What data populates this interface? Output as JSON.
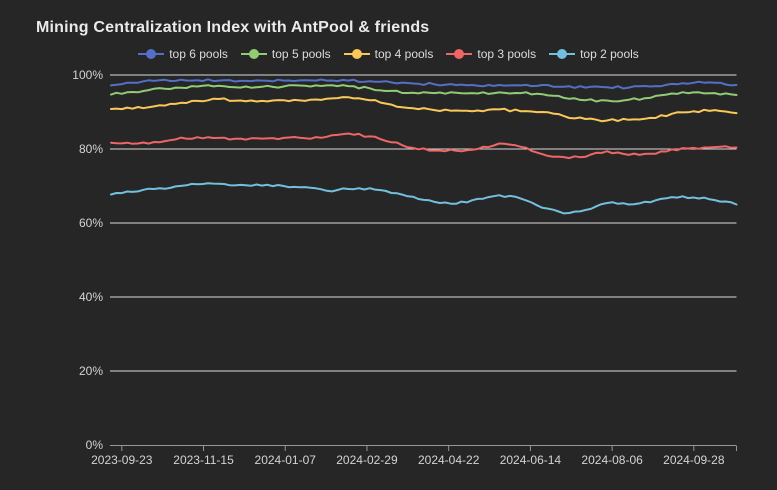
{
  "title": "Mining Centralization Index with AntPool & friends",
  "colors": {
    "background": "#262626",
    "title_text": "#eaeaea",
    "legend_text": "#dcdcdc",
    "axis_text": "#d4d4d4",
    "gridline": "#dadada",
    "axis_line": "#979797",
    "series_blue": "#5470c6",
    "series_green": "#91cc75",
    "series_yellow": "#fac858",
    "series_red": "#ee6666",
    "series_cyan": "#73c0de"
  },
  "chart_data": {
    "type": "line",
    "title": "Mining Centralization Index with AntPool & friends",
    "xlabel": "",
    "ylabel": "",
    "ylim": [
      0,
      100
    ],
    "grid": true,
    "legend_position": "top",
    "y_tick_labels": [
      "0%",
      "20%",
      "40%",
      "60%",
      "80%",
      "100%"
    ],
    "x_tick_labels": [
      "2023-09-23",
      "2023-11-15",
      "2024-01-07",
      "2024-02-29",
      "2024-04-22",
      "2024-06-14",
      "2024-08-06",
      "2024-09-28"
    ],
    "x": [
      "2023-09-16",
      "2023-09-30",
      "2023-10-14",
      "2023-10-28",
      "2023-11-11",
      "2023-11-25",
      "2023-12-09",
      "2023-12-23",
      "2024-01-06",
      "2024-01-20",
      "2024-02-03",
      "2024-02-17",
      "2024-03-02",
      "2024-03-16",
      "2024-03-30",
      "2024-04-13",
      "2024-04-27",
      "2024-05-11",
      "2024-05-25",
      "2024-06-08",
      "2024-06-22",
      "2024-07-06",
      "2024-07-20",
      "2024-08-03",
      "2024-08-17",
      "2024-08-31",
      "2024-09-14",
      "2024-09-28",
      "2024-10-12",
      "2024-10-26"
    ],
    "series": [
      {
        "name": "top 6 pools",
        "color": "#5470c6",
        "values": [
          97.2,
          97.9,
          98.4,
          98.4,
          98.6,
          98.5,
          98.4,
          98.5,
          98.5,
          98.6,
          98.5,
          98.5,
          98.3,
          98.0,
          97.7,
          97.5,
          97.3,
          97.1,
          97.3,
          97.2,
          97.3,
          96.8,
          96.6,
          96.7,
          96.6,
          96.9,
          97.6,
          97.9,
          97.9,
          97.3
        ]
      },
      {
        "name": "top 5 pools",
        "color": "#91cc75",
        "values": [
          94.7,
          95.4,
          96.3,
          96.6,
          96.9,
          97.1,
          96.6,
          96.8,
          96.9,
          97.1,
          97.2,
          97.0,
          96.4,
          95.7,
          95.2,
          95.1,
          95.2,
          95.0,
          95.3,
          95.1,
          94.8,
          93.8,
          93.2,
          93.1,
          93.3,
          93.8,
          95.0,
          95.3,
          95.1,
          94.6
        ]
      },
      {
        "name": "top 4 pools",
        "color": "#fac858",
        "values": [
          90.8,
          90.9,
          91.5,
          92.2,
          93.0,
          93.5,
          93.1,
          93.0,
          93.2,
          93.0,
          93.6,
          94.0,
          93.2,
          92.0,
          91.0,
          90.5,
          90.4,
          90.4,
          90.7,
          90.2,
          90.0,
          88.9,
          88.1,
          87.7,
          87.9,
          88.4,
          89.5,
          90.2,
          90.5,
          89.7
        ]
      },
      {
        "name": "top 3 pools",
        "color": "#ee6666",
        "values": [
          81.7,
          81.4,
          81.9,
          82.6,
          83.2,
          83.0,
          82.8,
          82.8,
          83.0,
          82.9,
          83.3,
          84.2,
          83.4,
          81.8,
          80.3,
          79.6,
          79.5,
          80.0,
          81.5,
          80.6,
          78.6,
          77.8,
          77.9,
          79.4,
          78.4,
          78.7,
          79.9,
          80.3,
          80.5,
          80.4
        ]
      },
      {
        "name": "top 2 pools",
        "color": "#73c0de",
        "values": [
          67.7,
          68.4,
          69.2,
          69.9,
          70.5,
          70.6,
          70.3,
          70.1,
          70.0,
          69.7,
          68.7,
          69.2,
          69.4,
          68.1,
          67.1,
          65.7,
          65.2,
          66.5,
          67.5,
          66.6,
          64.1,
          62.6,
          63.5,
          65.4,
          65.0,
          65.6,
          67.0,
          66.9,
          66.2,
          65.0
        ]
      }
    ]
  }
}
